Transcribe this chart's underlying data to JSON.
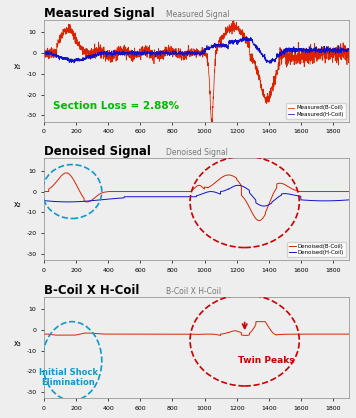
{
  "fig_width": 3.56,
  "fig_height": 4.18,
  "dpi": 100,
  "bg_color": "#eeeeee",
  "panel1_title": "Measured Signal",
  "panel1_inner_title": "Measured Signal",
  "panel2_title": "Denoised Signal",
  "panel2_inner_title": "Denoised Signal",
  "panel3_title": "B-Coil X H-Coil",
  "panel3_inner_title": "B-Coil X H-Coil",
  "section_loss_text": "Section Loss = 2.88%",
  "section_loss_color": "#00bb00",
  "red_color": "#dd2200",
  "blue_color": "#1111cc",
  "dashed_red": "#cc0000",
  "dashed_blue": "#1199cc",
  "n_points": 1900,
  "ylim": [
    -33,
    16
  ],
  "xlim": [
    0,
    1900
  ],
  "xticks": [
    0,
    200,
    400,
    600,
    800,
    1000,
    1200,
    1400,
    1600,
    1800
  ],
  "yticks1": [
    -30,
    -20,
    -10,
    0,
    10
  ],
  "yticks2": [
    -30,
    -20,
    -10,
    0,
    10
  ],
  "yticks3": [
    -30,
    -20,
    -10,
    0,
    10
  ]
}
